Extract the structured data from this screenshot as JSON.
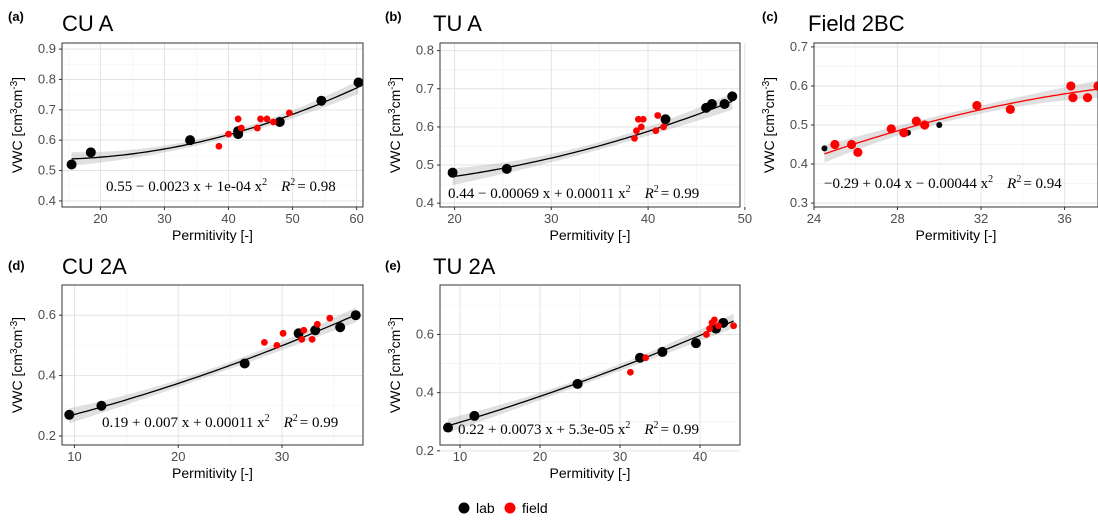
{
  "colors": {
    "lab": "#000000",
    "field": "#ff0000"
  },
  "legend": {
    "items": [
      {
        "label": "lab",
        "color": "#000000"
      },
      {
        "label": "field",
        "color": "#ff0000"
      }
    ],
    "placement": "bottom"
  },
  "chart_data": [
    {
      "type": "scatter",
      "panel": "(a)",
      "title": "CU A",
      "xlabel": "Permitivity [-]",
      "ylabel": "VWC [cm3cm-3]",
      "xlim": [
        14,
        61
      ],
      "ylim": [
        0.38,
        0.92
      ],
      "xticks": [
        20,
        30,
        40,
        50,
        60
      ],
      "yticks": [
        0.4,
        0.5,
        0.6,
        0.7,
        0.8,
        0.9
      ],
      "fit": {
        "coef": [
          0.55,
          -0.0023,
          0.0001
        ],
        "color": "#000000",
        "band": 0.022
      },
      "equation": "0.55 − 0.0023 x + 1e-04 x",
      "r2": "= 0.98",
      "series": [
        {
          "name": "lab",
          "color": "#000000",
          "size": 5,
          "points": [
            [
              15.5,
              0.52
            ],
            [
              18.5,
              0.56
            ],
            [
              34,
              0.6
            ],
            [
              41.5,
              0.63
            ],
            [
              41.5,
              0.62
            ],
            [
              48,
              0.66
            ],
            [
              54.5,
              0.73
            ],
            [
              60.3,
              0.79
            ]
          ]
        },
        {
          "name": "field",
          "color": "#ff0000",
          "size": 3.4,
          "points": [
            [
              38.5,
              0.58
            ],
            [
              40,
              0.62
            ],
            [
              41.5,
              0.67
            ],
            [
              42,
              0.64
            ],
            [
              44.5,
              0.64
            ],
            [
              45,
              0.67
            ],
            [
              46,
              0.67
            ],
            [
              47,
              0.66
            ],
            [
              49.5,
              0.69
            ]
          ]
        }
      ]
    },
    {
      "type": "scatter",
      "panel": "(b)",
      "title": "TU A",
      "xlabel": "Permitivity [-]",
      "ylabel": "VWC [cm3cm-3]",
      "xlim": [
        18.5,
        49.5
      ],
      "ylim": [
        0.39,
        0.82
      ],
      "xticks": [
        20,
        30,
        40,
        50
      ],
      "yticks": [
        0.4,
        0.5,
        0.6,
        0.7,
        0.8
      ],
      "fit": {
        "coef": [
          0.44,
          -0.00069,
          0.00011
        ],
        "color": "#000000",
        "band": 0.022
      },
      "equation": "0.44 − 0.00069 x + 0.00011 x",
      "r2": "= 0.99",
      "series": [
        {
          "name": "lab",
          "color": "#000000",
          "size": 5,
          "points": [
            [
              19.8,
              0.48
            ],
            [
              25.4,
              0.49
            ],
            [
              41.8,
              0.62
            ],
            [
              46,
              0.65
            ],
            [
              46.6,
              0.66
            ],
            [
              47.9,
              0.66
            ],
            [
              48.7,
              0.68
            ]
          ]
        },
        {
          "name": "field",
          "color": "#ff0000",
          "size": 3.4,
          "points": [
            [
              38.6,
              0.57
            ],
            [
              38.8,
              0.59
            ],
            [
              39,
              0.62
            ],
            [
              39.3,
              0.6
            ],
            [
              39.5,
              0.62
            ],
            [
              40.8,
              0.59
            ],
            [
              41,
              0.63
            ],
            [
              41.6,
              0.6
            ]
          ]
        }
      ]
    },
    {
      "type": "scatter",
      "panel": "(c)",
      "title": "Field 2BC",
      "xlabel": "Permitivity [-]",
      "ylabel": "VWC [cm3cm-3]",
      "xlim": [
        24,
        37.6
      ],
      "ylim": [
        0.29,
        0.71
      ],
      "xticks": [
        24,
        28,
        32,
        36
      ],
      "yticks": [
        0.3,
        0.4,
        0.5,
        0.6,
        0.7
      ],
      "fit": {
        "coef": [
          -0.29,
          0.04,
          -0.00044
        ],
        "color": "#ff0000",
        "band": 0.022
      },
      "equation": "−0.29 + 0.04 x − 0.00044 x",
      "r2": "= 0.94",
      "series": [
        {
          "name": "lab",
          "color": "#000000",
          "size": 3,
          "points": [
            [
              24.5,
              0.44
            ],
            [
              28.5,
              0.48
            ],
            [
              30,
              0.5
            ]
          ]
        },
        {
          "name": "field",
          "color": "#ff0000",
          "size": 4.6,
          "points": [
            [
              25,
              0.45
            ],
            [
              25.8,
              0.45
            ],
            [
              26.1,
              0.43
            ],
            [
              27.7,
              0.49
            ],
            [
              28.3,
              0.48
            ],
            [
              28.9,
              0.51
            ],
            [
              29.3,
              0.5
            ],
            [
              31.8,
              0.55
            ],
            [
              33.4,
              0.54
            ],
            [
              36.3,
              0.6
            ],
            [
              36.4,
              0.57
            ],
            [
              37.1,
              0.57
            ],
            [
              37.6,
              0.6
            ]
          ]
        }
      ]
    },
    {
      "type": "scatter",
      "panel": "(d)",
      "title": "CU 2A",
      "xlabel": "Permitivity [-]",
      "ylabel": "VWC [cm3cm-3]",
      "xlim": [
        8.8,
        37.8
      ],
      "ylim": [
        0.17,
        0.7
      ],
      "xticks": [
        10,
        20,
        30
      ],
      "yticks": [
        0.2,
        0.4,
        0.6
      ],
      "fit": {
        "coef": [
          0.19,
          0.007,
          0.00011
        ],
        "color": "#000000",
        "band": 0.025
      },
      "equation": "0.19 + 0.007 x + 0.00011 x",
      "r2": "= 0.99",
      "series": [
        {
          "name": "lab",
          "color": "#000000",
          "size": 5,
          "points": [
            [
              9.5,
              0.27
            ],
            [
              12.6,
              0.3
            ],
            [
              26.4,
              0.44
            ],
            [
              31.6,
              0.54
            ],
            [
              33.2,
              0.55
            ],
            [
              35.6,
              0.56
            ],
            [
              37.1,
              0.6
            ]
          ]
        },
        {
          "name": "field",
          "color": "#ff0000",
          "size": 3.4,
          "points": [
            [
              28.3,
              0.51
            ],
            [
              29.5,
              0.5
            ],
            [
              30.1,
              0.54
            ],
            [
              31.9,
              0.52
            ],
            [
              32.1,
              0.55
            ],
            [
              32.9,
              0.52
            ],
            [
              33.4,
              0.57
            ],
            [
              34.6,
              0.59
            ]
          ]
        }
      ]
    },
    {
      "type": "scatter",
      "panel": "(e)",
      "title": "TU 2A",
      "xlabel": "Permitivity [-]",
      "ylabel": "VWC [cm3cm-3]",
      "xlim": [
        7.5,
        45
      ],
      "ylim": [
        0.22,
        0.77
      ],
      "xticks": [
        10,
        20,
        30,
        40
      ],
      "yticks": [
        0.2,
        0.4,
        0.6
      ],
      "fit": {
        "coef": [
          0.22,
          0.0073,
          5.3e-05
        ],
        "color": "#000000",
        "band": 0.025
      },
      "equation": "0.22 + 0.0073 x + 5.3e-05 x",
      "r2": "= 0.99",
      "series": [
        {
          "name": "lab",
          "color": "#000000",
          "size": 5,
          "points": [
            [
              8.5,
              0.28
            ],
            [
              11.8,
              0.32
            ],
            [
              24.7,
              0.43
            ],
            [
              32.5,
              0.52
            ],
            [
              35.3,
              0.54
            ],
            [
              39.5,
              0.57
            ],
            [
              42,
              0.62
            ],
            [
              42.9,
              0.64
            ]
          ]
        },
        {
          "name": "field",
          "color": "#ff0000",
          "size": 3.4,
          "points": [
            [
              31.3,
              0.47
            ],
            [
              33.2,
              0.52
            ],
            [
              40.8,
              0.6
            ],
            [
              41.2,
              0.62
            ],
            [
              41.5,
              0.64
            ],
            [
              41.8,
              0.65
            ],
            [
              42.3,
              0.63
            ],
            [
              44.2,
              0.63
            ]
          ]
        }
      ]
    }
  ]
}
